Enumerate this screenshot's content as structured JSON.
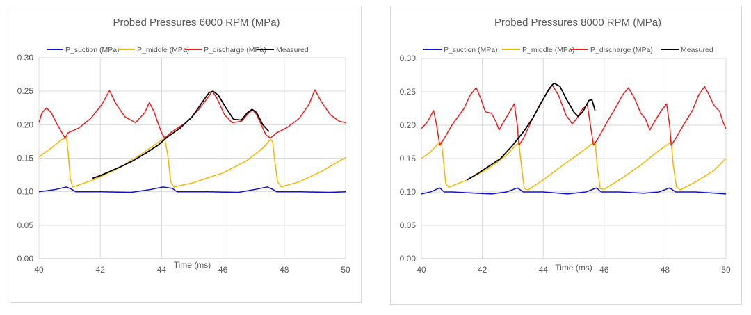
{
  "chart_data": [
    {
      "type": "line",
      "title": "Probed Pressures 6000 RPM (MPa)",
      "xlabel": "Time (ms)",
      "ylabel": "",
      "xlim": [
        40,
        50
      ],
      "ylim": [
        0,
        0.3
      ],
      "xticks": [
        "40",
        "42",
        "44",
        "46",
        "48",
        "50"
      ],
      "yticks": [
        "0.00",
        "0.05",
        "0.10",
        "0.15",
        "0.20",
        "0.25",
        "0.30"
      ],
      "legend_position": "top",
      "series": [
        {
          "name": "P_suction (MPa)",
          "color": "#1010d8",
          "points": [
            [
              40,
              0.1
            ],
            [
              40.5,
              0.103
            ],
            [
              40.9,
              0.107
            ],
            [
              41.05,
              0.104
            ],
            [
              41.2,
              0.1
            ],
            [
              42,
              0.1
            ],
            [
              43,
              0.099
            ],
            [
              43.6,
              0.103
            ],
            [
              44.05,
              0.107
            ],
            [
              44.35,
              0.105
            ],
            [
              44.5,
              0.1
            ],
            [
              45.5,
              0.1
            ],
            [
              46.5,
              0.099
            ],
            [
              47,
              0.103
            ],
            [
              47.45,
              0.107
            ],
            [
              47.6,
              0.104
            ],
            [
              47.75,
              0.1
            ],
            [
              48.5,
              0.1
            ],
            [
              49.5,
              0.099
            ],
            [
              50,
              0.1
            ]
          ]
        },
        {
          "name": "P_middle (MPa)",
          "color": "#f5b800",
          "points": [
            [
              40,
              0.152
            ],
            [
              40.4,
              0.165
            ],
            [
              40.75,
              0.178
            ],
            [
              40.9,
              0.18
            ],
            [
              40.95,
              0.16
            ],
            [
              41.02,
              0.12
            ],
            [
              41.1,
              0.107
            ],
            [
              41.8,
              0.118
            ],
            [
              42.6,
              0.135
            ],
            [
              43.3,
              0.155
            ],
            [
              43.9,
              0.174
            ],
            [
              44.1,
              0.18
            ],
            [
              44.2,
              0.155
            ],
            [
              44.3,
              0.115
            ],
            [
              44.4,
              0.107
            ],
            [
              45,
              0.113
            ],
            [
              46,
              0.128
            ],
            [
              46.8,
              0.147
            ],
            [
              47.3,
              0.165
            ],
            [
              47.55,
              0.178
            ],
            [
              47.62,
              0.175
            ],
            [
              47.68,
              0.15
            ],
            [
              47.78,
              0.115
            ],
            [
              47.9,
              0.107
            ],
            [
              48.5,
              0.115
            ],
            [
              49.2,
              0.13
            ],
            [
              50,
              0.151
            ]
          ]
        },
        {
          "name": "P_discharge (MPa)",
          "color": "#ee1c1c",
          "points": [
            [
              40,
              0.203
            ],
            [
              40.1,
              0.218
            ],
            [
              40.25,
              0.225
            ],
            [
              40.4,
              0.218
            ],
            [
              40.6,
              0.2
            ],
            [
              40.75,
              0.188
            ],
            [
              40.85,
              0.18
            ],
            [
              40.95,
              0.188
            ],
            [
              41.3,
              0.195
            ],
            [
              41.7,
              0.21
            ],
            [
              42.05,
              0.23
            ],
            [
              42.3,
              0.251
            ],
            [
              42.5,
              0.232
            ],
            [
              42.8,
              0.212
            ],
            [
              43.15,
              0.203
            ],
            [
              43.45,
              0.218
            ],
            [
              43.6,
              0.233
            ],
            [
              43.75,
              0.22
            ],
            [
              43.9,
              0.2
            ],
            [
              44,
              0.188
            ],
            [
              44.1,
              0.18
            ],
            [
              44.35,
              0.19
            ],
            [
              44.8,
              0.203
            ],
            [
              45.2,
              0.222
            ],
            [
              45.5,
              0.24
            ],
            [
              45.65,
              0.25
            ],
            [
              45.8,
              0.24
            ],
            [
              46.05,
              0.215
            ],
            [
              46.3,
              0.203
            ],
            [
              46.6,
              0.205
            ],
            [
              46.85,
              0.218
            ],
            [
              46.97,
              0.222
            ],
            [
              47.1,
              0.215
            ],
            [
              47.25,
              0.2
            ],
            [
              47.4,
              0.185
            ],
            [
              47.55,
              0.18
            ],
            [
              47.75,
              0.188
            ],
            [
              48.1,
              0.196
            ],
            [
              48.5,
              0.21
            ],
            [
              48.8,
              0.23
            ],
            [
              49,
              0.252
            ],
            [
              49.2,
              0.235
            ],
            [
              49.5,
              0.215
            ],
            [
              49.8,
              0.205
            ],
            [
              50,
              0.203
            ]
          ]
        },
        {
          "name": "Measured",
          "color": "#000000",
          "points": [
            [
              41.75,
              0.12
            ],
            [
              42,
              0.124
            ],
            [
              42.3,
              0.13
            ],
            [
              42.7,
              0.138
            ],
            [
              43.1,
              0.147
            ],
            [
              43.5,
              0.158
            ],
            [
              43.9,
              0.17
            ],
            [
              44.2,
              0.182
            ],
            [
              44.6,
              0.195
            ],
            [
              45,
              0.212
            ],
            [
              45.3,
              0.232
            ],
            [
              45.55,
              0.248
            ],
            [
              45.68,
              0.25
            ],
            [
              45.85,
              0.244
            ],
            [
              46.1,
              0.225
            ],
            [
              46.35,
              0.208
            ],
            [
              46.6,
              0.207
            ],
            [
              46.8,
              0.218
            ],
            [
              46.95,
              0.223
            ],
            [
              47.1,
              0.218
            ],
            [
              47.3,
              0.2
            ],
            [
              47.5,
              0.19
            ]
          ]
        }
      ]
    },
    {
      "type": "line",
      "title": "Probed Pressures 8000 RPM (MPa)",
      "xlabel": "Time (ms)",
      "ylabel": "",
      "xlim": [
        40,
        50
      ],
      "ylim": [
        0,
        0.3
      ],
      "xticks": [
        "40",
        "42",
        "44",
        "46",
        "48",
        "50"
      ],
      "yticks": [
        "0.00",
        "0.05",
        "0.10",
        "0.15",
        "0.20",
        "0.25",
        "0.30"
      ],
      "legend_position": "top",
      "series": [
        {
          "name": "P_suction (MPa)",
          "color": "#1010d8",
          "points": [
            [
              40,
              0.097
            ],
            [
              40.3,
              0.1
            ],
            [
              40.6,
              0.106
            ],
            [
              40.75,
              0.1
            ],
            [
              41,
              0.1
            ],
            [
              41.8,
              0.098
            ],
            [
              42.3,
              0.097
            ],
            [
              42.8,
              0.1
            ],
            [
              43.15,
              0.106
            ],
            [
              43.35,
              0.1
            ],
            [
              44,
              0.1
            ],
            [
              44.8,
              0.097
            ],
            [
              45.4,
              0.1
            ],
            [
              45.75,
              0.106
            ],
            [
              45.9,
              0.1
            ],
            [
              46.5,
              0.1
            ],
            [
              47.3,
              0.098
            ],
            [
              47.8,
              0.1
            ],
            [
              48.15,
              0.106
            ],
            [
              48.35,
              0.1
            ],
            [
              49,
              0.1
            ],
            [
              50,
              0.097
            ]
          ]
        },
        {
          "name": "P_middle (MPa)",
          "color": "#f5b800",
          "points": [
            [
              40,
              0.15
            ],
            [
              40.3,
              0.16
            ],
            [
              40.55,
              0.172
            ],
            [
              40.65,
              0.175
            ],
            [
              40.72,
              0.15
            ],
            [
              40.8,
              0.112
            ],
            [
              40.9,
              0.107
            ],
            [
              41.5,
              0.118
            ],
            [
              42.2,
              0.135
            ],
            [
              42.8,
              0.155
            ],
            [
              43.1,
              0.17
            ],
            [
              43.2,
              0.173
            ],
            [
              43.28,
              0.14
            ],
            [
              43.38,
              0.105
            ],
            [
              43.5,
              0.103
            ],
            [
              44,
              0.118
            ],
            [
              44.7,
              0.142
            ],
            [
              45.2,
              0.158
            ],
            [
              45.6,
              0.172
            ],
            [
              45.7,
              0.175
            ],
            [
              45.77,
              0.14
            ],
            [
              45.87,
              0.105
            ],
            [
              46,
              0.104
            ],
            [
              46.5,
              0.118
            ],
            [
              47.2,
              0.14
            ],
            [
              47.8,
              0.162
            ],
            [
              48.2,
              0.175
            ],
            [
              48.27,
              0.14
            ],
            [
              48.37,
              0.108
            ],
            [
              48.5,
              0.103
            ],
            [
              49,
              0.115
            ],
            [
              49.6,
              0.132
            ],
            [
              50,
              0.15
            ]
          ]
        },
        {
          "name": "P_discharge (MPa)",
          "color": "#ee1c1c",
          "points": [
            [
              40,
              0.195
            ],
            [
              40.2,
              0.205
            ],
            [
              40.4,
              0.222
            ],
            [
              40.5,
              0.2
            ],
            [
              40.6,
              0.17
            ],
            [
              40.75,
              0.18
            ],
            [
              41,
              0.2
            ],
            [
              41.4,
              0.225
            ],
            [
              41.6,
              0.245
            ],
            [
              41.8,
              0.256
            ],
            [
              41.95,
              0.24
            ],
            [
              42.1,
              0.22
            ],
            [
              42.3,
              0.218
            ],
            [
              42.45,
              0.205
            ],
            [
              42.55,
              0.193
            ],
            [
              42.7,
              0.205
            ],
            [
              42.9,
              0.22
            ],
            [
              43.05,
              0.232
            ],
            [
              43.15,
              0.2
            ],
            [
              43.2,
              0.17
            ],
            [
              43.35,
              0.18
            ],
            [
              43.6,
              0.205
            ],
            [
              43.9,
              0.232
            ],
            [
              44.15,
              0.25
            ],
            [
              44.3,
              0.26
            ],
            [
              44.5,
              0.245
            ],
            [
              44.75,
              0.215
            ],
            [
              44.95,
              0.202
            ],
            [
              45.1,
              0.21
            ],
            [
              45.3,
              0.225
            ],
            [
              45.45,
              0.23
            ],
            [
              45.55,
              0.2
            ],
            [
              45.65,
              0.17
            ],
            [
              45.8,
              0.18
            ],
            [
              46.1,
              0.205
            ],
            [
              46.4,
              0.228
            ],
            [
              46.6,
              0.245
            ],
            [
              46.8,
              0.256
            ],
            [
              47,
              0.24
            ],
            [
              47.2,
              0.218
            ],
            [
              47.35,
              0.21
            ],
            [
              47.5,
              0.193
            ],
            [
              47.65,
              0.205
            ],
            [
              47.85,
              0.22
            ],
            [
              48.05,
              0.232
            ],
            [
              48.15,
              0.2
            ],
            [
              48.2,
              0.17
            ],
            [
              48.35,
              0.18
            ],
            [
              48.6,
              0.2
            ],
            [
              48.9,
              0.222
            ],
            [
              49.1,
              0.245
            ],
            [
              49.3,
              0.258
            ],
            [
              49.45,
              0.245
            ],
            [
              49.6,
              0.23
            ],
            [
              49.8,
              0.22
            ],
            [
              49.9,
              0.205
            ],
            [
              50,
              0.195
            ]
          ]
        },
        {
          "name": "Measured",
          "color": "#000000",
          "points": [
            [
              41.5,
              0.118
            ],
            [
              41.8,
              0.126
            ],
            [
              42.2,
              0.138
            ],
            [
              42.6,
              0.15
            ],
            [
              43,
              0.17
            ],
            [
              43.35,
              0.19
            ],
            [
              43.65,
              0.21
            ],
            [
              43.95,
              0.235
            ],
            [
              44.2,
              0.255
            ],
            [
              44.35,
              0.263
            ],
            [
              44.55,
              0.258
            ],
            [
              44.75,
              0.24
            ],
            [
              45,
              0.22
            ],
            [
              45.15,
              0.213
            ],
            [
              45.3,
              0.22
            ],
            [
              45.5,
              0.237
            ],
            [
              45.6,
              0.238
            ],
            [
              45.7,
              0.222
            ]
          ]
        }
      ]
    }
  ]
}
